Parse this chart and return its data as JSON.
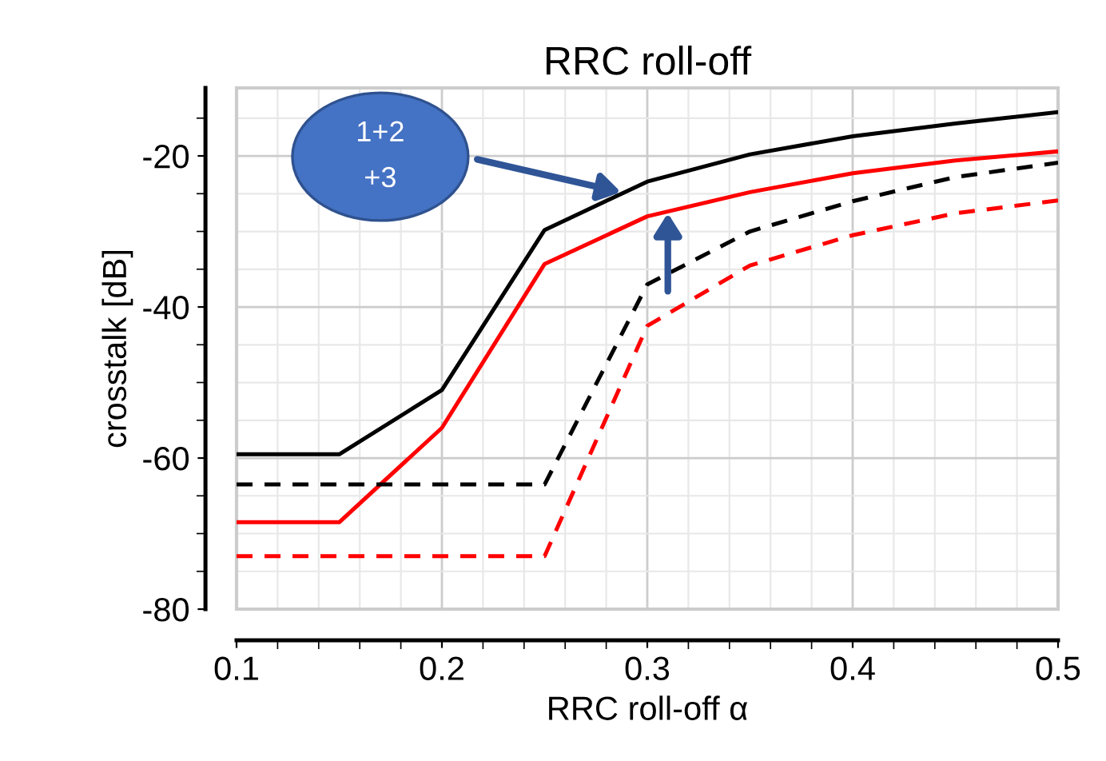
{
  "chart_data": {
    "type": "line",
    "title": "RRC roll-off",
    "xlabel": "RRC roll-off α",
    "ylabel": "crosstalk [dB]",
    "x": [
      0.1,
      0.15,
      0.2,
      0.25,
      0.3,
      0.35,
      0.4,
      0.45,
      0.5
    ],
    "series": [
      {
        "color": "#000000",
        "line_style": "solid",
        "values": [
          -59.5,
          -59.5,
          -51,
          -29.8,
          -23.4,
          -19.8,
          -17.4,
          -15.7,
          -14.2
        ]
      },
      {
        "color": "#ff0000",
        "line_style": "solid",
        "values": [
          -68.5,
          -68.5,
          -56,
          -34.3,
          -28,
          -24.8,
          -22.3,
          -20.6,
          -19.4
        ]
      },
      {
        "color": "#000000",
        "line_style": "dashed",
        "values": [
          -63.5,
          -63.5,
          -63.5,
          -63.5,
          -37,
          -30,
          -26,
          -22.8,
          -20.9
        ]
      },
      {
        "color": "#ff0000",
        "line_style": "dashed",
        "values": [
          -73,
          -73,
          -73,
          -73,
          -42.5,
          -34.5,
          -30.5,
          -27.6,
          -25.9
        ]
      }
    ],
    "xlim": [
      0.1,
      0.5
    ],
    "xticks": [
      0.1,
      0.2,
      0.3,
      0.4,
      0.5
    ],
    "ylim": [
      -80,
      -11
    ],
    "yticks": [
      -80,
      -60,
      -40,
      -20
    ],
    "grid": true,
    "marker": "none",
    "annotations": [
      "1+2\n+3"
    ]
  }
}
